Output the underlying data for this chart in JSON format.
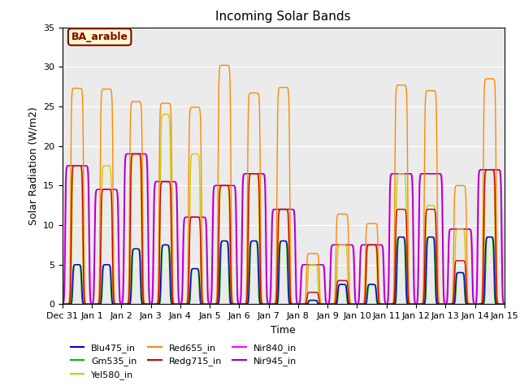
{
  "title": "Incoming Solar Bands",
  "xlabel": "Time",
  "ylabel": "Solar Radiation (W/m2)",
  "annotation": "BA_arable",
  "ylim": [
    0,
    35
  ],
  "legend_entries": [
    "Blu475_in",
    "Gm535_in",
    "Yel580_in",
    "Red655_in",
    "Redg715_in",
    "Nir840_in",
    "Nir945_in"
  ],
  "legend_colors": [
    "#0000cc",
    "#00bb00",
    "#cccc00",
    "#ff8800",
    "#cc0000",
    "#ff00ff",
    "#9900bb"
  ],
  "line_colors": {
    "Blu475_in": "#0000cc",
    "Gm535_in": "#00bb00",
    "Yel580_in": "#cccc00",
    "Red655_in": "#ff8800",
    "Redg715_in": "#cc0000",
    "Nir840_in": "#ff00ff",
    "Nir945_in": "#9900bb"
  },
  "bg_color": "#ebebeb",
  "annotation_bg": "#ffffcc",
  "annotation_fg": "#880000",
  "xtick_labels": [
    "Dec 31",
    "Jan 1",
    "Jan 2",
    "Jan 3",
    "Jan 4",
    "Jan 5",
    "Jan 6",
    "Jan 7",
    "Jan 8",
    "Jan 9",
    "Jan 10",
    "Jan 11",
    "Jan 12",
    "Jan 13",
    "Jan 14",
    "Jan 15"
  ],
  "day_peaks": {
    "day0": {
      "Red655_in": 27.3,
      "Yel580_in": 17.5,
      "Redg715_in": 17.5,
      "Nir840_in": 17.5,
      "Nir945_in": 17.5,
      "Blu475_in": 5.0,
      "Gm535_in": 5.0
    },
    "day1": {
      "Red655_in": 27.2,
      "Yel580_in": 17.5,
      "Redg715_in": 14.5,
      "Nir840_in": 14.5,
      "Nir945_in": 14.5,
      "Blu475_in": 5.0,
      "Gm535_in": 5.0
    },
    "day2": {
      "Red655_in": 25.6,
      "Yel580_in": 19.0,
      "Redg715_in": 19.0,
      "Nir840_in": 19.0,
      "Nir945_in": 19.0,
      "Blu475_in": 7.0,
      "Gm535_in": 7.0
    },
    "day3": {
      "Red655_in": 25.4,
      "Yel580_in": 24.0,
      "Redg715_in": 15.5,
      "Nir840_in": 15.5,
      "Nir945_in": 15.5,
      "Blu475_in": 7.5,
      "Gm535_in": 7.5
    },
    "day4": {
      "Red655_in": 24.9,
      "Yel580_in": 19.0,
      "Redg715_in": 11.0,
      "Nir840_in": 11.0,
      "Nir945_in": 11.0,
      "Blu475_in": 4.5,
      "Gm535_in": 4.5
    },
    "day5": {
      "Red655_in": 30.2,
      "Yel580_in": 15.0,
      "Redg715_in": 15.0,
      "Nir840_in": 15.0,
      "Nir945_in": 15.0,
      "Blu475_in": 8.0,
      "Gm535_in": 8.0
    },
    "day6": {
      "Red655_in": 26.7,
      "Yel580_in": 16.5,
      "Redg715_in": 16.5,
      "Nir840_in": 16.5,
      "Nir945_in": 16.5,
      "Blu475_in": 8.0,
      "Gm535_in": 8.0
    },
    "day7": {
      "Red655_in": 27.4,
      "Yel580_in": 12.0,
      "Redg715_in": 12.0,
      "Nir840_in": 12.0,
      "Nir945_in": 12.0,
      "Blu475_in": 8.0,
      "Gm535_in": 8.0
    },
    "day8": {
      "Red655_in": 6.4,
      "Yel580_in": 5.0,
      "Redg715_in": 1.5,
      "Nir840_in": 5.0,
      "Nir945_in": 5.0,
      "Blu475_in": 0.5,
      "Gm535_in": 0.5
    },
    "day9": {
      "Red655_in": 11.4,
      "Yel580_in": 7.5,
      "Redg715_in": 3.0,
      "Nir840_in": 7.5,
      "Nir945_in": 7.5,
      "Blu475_in": 2.5,
      "Gm535_in": 2.5
    },
    "day10": {
      "Red655_in": 10.2,
      "Yel580_in": 7.5,
      "Redg715_in": 7.5,
      "Nir840_in": 7.5,
      "Nir945_in": 7.5,
      "Blu475_in": 2.5,
      "Gm535_in": 2.5
    },
    "day11": {
      "Red655_in": 27.7,
      "Yel580_in": 16.5,
      "Redg715_in": 12.0,
      "Nir840_in": 16.5,
      "Nir945_in": 16.5,
      "Blu475_in": 8.5,
      "Gm535_in": 8.5
    },
    "day12": {
      "Red655_in": 27.0,
      "Yel580_in": 12.5,
      "Redg715_in": 12.0,
      "Nir840_in": 16.5,
      "Nir945_in": 16.5,
      "Blu475_in": 8.5,
      "Gm535_in": 8.5
    },
    "day13": {
      "Red655_in": 15.0,
      "Yel580_in": 9.5,
      "Redg715_in": 5.5,
      "Nir840_in": 9.5,
      "Nir945_in": 9.5,
      "Blu475_in": 4.0,
      "Gm535_in": 4.0
    },
    "day14": {
      "Red655_in": 28.5,
      "Yel580_in": 17.0,
      "Redg715_in": 17.0,
      "Nir840_in": 17.0,
      "Nir945_in": 17.0,
      "Blu475_in": 8.5,
      "Gm535_in": 8.5
    }
  },
  "day_widths": {
    "Nir840_in": 0.42,
    "Nir945_in": 0.4,
    "Red655_in": 0.22,
    "Redg715_in": 0.2,
    "Yel580_in": 0.18,
    "Blu475_in": 0.16,
    "Gm535_in": 0.14
  }
}
